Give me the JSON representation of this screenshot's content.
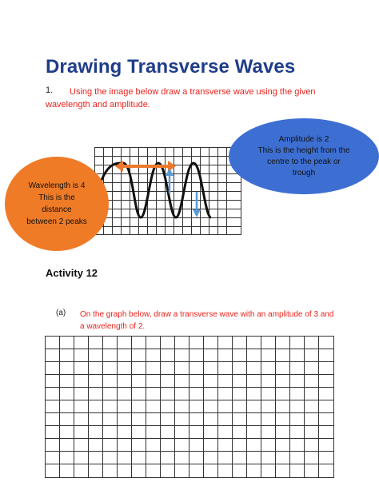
{
  "title": "Drawing Transverse Waves",
  "question1": {
    "number": "1.",
    "text": "Using the image below draw a transverse wave using the given wavelength and amplitude."
  },
  "diagram": {
    "wavelength_callout": [
      "Wavelength is 4",
      "This is the",
      "distance",
      "between 2 peaks"
    ],
    "amplitude_callout": [
      "Amplitude is 2",
      "This is the height from the",
      "centre to the peak or",
      "trough"
    ],
    "colors": {
      "wave": "#111111",
      "wavelength_arrow": "#ec7a2c",
      "amplitude_arrow": "#5b9bd5",
      "orange_bubble": "#ef7b26",
      "blue_bubble": "#3d6fd3"
    }
  },
  "activity": {
    "heading": "Activity 12",
    "part_label": "(a)",
    "part_text": "On the graph below, draw a transverse wave with an amplitude of 3 and a wavelength of 2."
  }
}
